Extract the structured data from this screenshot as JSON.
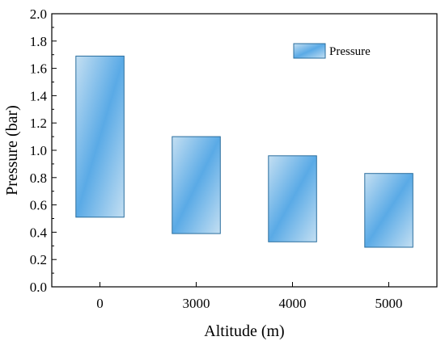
{
  "chart_data": {
    "type": "bar",
    "subtype": "floating-range",
    "categories": [
      "0",
      "3000",
      "4000",
      "5000"
    ],
    "series": [
      {
        "name": "Pressure",
        "ranges": [
          [
            0.51,
            1.69
          ],
          [
            0.39,
            1.1
          ],
          [
            0.33,
            0.96
          ],
          [
            0.29,
            0.83
          ]
        ]
      }
    ],
    "xlabel": "Altitude (m)",
    "ylabel": "Pressure (bar)",
    "ylim": [
      0.0,
      2.0
    ],
    "yticks": [
      "0.0",
      "0.2",
      "0.4",
      "0.6",
      "0.8",
      "1.0",
      "1.2",
      "1.4",
      "1.6",
      "1.8",
      "2.0"
    ],
    "grid": false,
    "legend_position": "top-right",
    "bar_gradient": [
      "#c4dff2",
      "#5aaae6"
    ],
    "bar_stroke": "#2a6e9e"
  }
}
